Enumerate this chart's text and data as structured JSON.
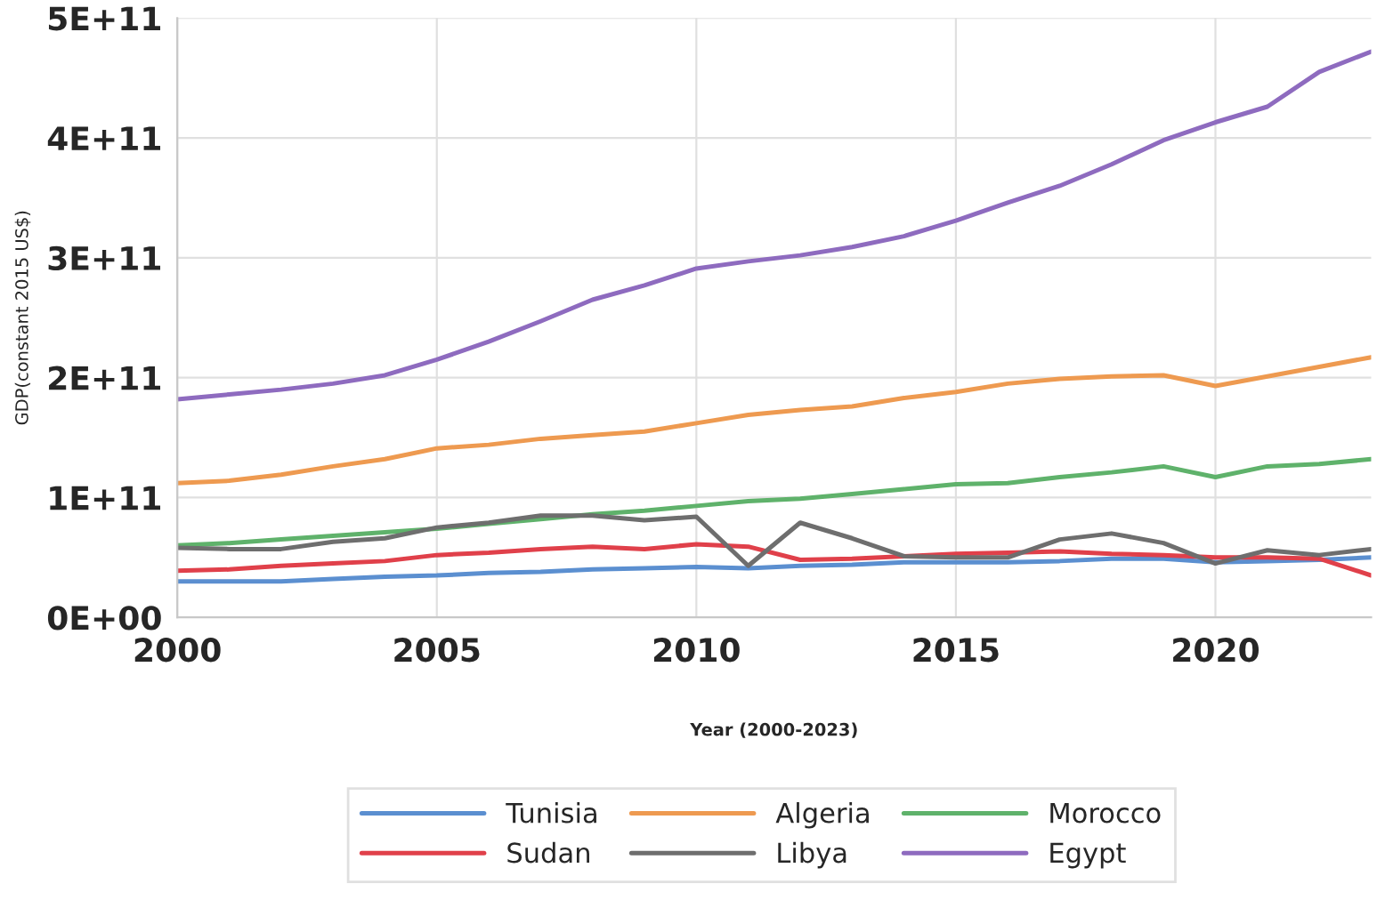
{
  "chart_data": {
    "type": "line",
    "xlabel": "Year (2000-2023)",
    "ylabel": "GDP(constant 2015 US$)",
    "x": [
      2000,
      2001,
      2002,
      2003,
      2004,
      2005,
      2006,
      2007,
      2008,
      2009,
      2010,
      2011,
      2012,
      2013,
      2014,
      2015,
      2016,
      2017,
      2018,
      2019,
      2020,
      2021,
      2022,
      2023
    ],
    "series": [
      {
        "name": "Tunisia",
        "color": "#5b8fd0",
        "values": [
          30000000000.0,
          30000000000.0,
          30000000000.0,
          32000000000.0,
          34000000000.0,
          35000000000.0,
          37000000000.0,
          38000000000.0,
          40000000000.0,
          41000000000.0,
          42000000000.0,
          41000000000.0,
          43000000000.0,
          44000000000.0,
          46000000000.0,
          46000000000.0,
          46000000000.0,
          47000000000.0,
          49000000000.0,
          49000000000.0,
          46000000000.0,
          47000000000.0,
          48000000000.0,
          50000000000.0
        ]
      },
      {
        "name": "Algeria",
        "color": "#ee9a50",
        "values": [
          112000000000.0,
          114000000000.0,
          119000000000.0,
          126000000000.0,
          132000000000.0,
          141000000000.0,
          144000000000.0,
          149000000000.0,
          152000000000.0,
          155000000000.0,
          162000000000.0,
          169000000000.0,
          173000000000.0,
          176000000000.0,
          183000000000.0,
          188000000000.0,
          195000000000.0,
          199000000000.0,
          201000000000.0,
          202000000000.0,
          193000000000.0,
          201000000000.0,
          209000000000.0,
          217000000000.0
        ]
      },
      {
        "name": "Morocco",
        "color": "#5fb26b",
        "values": [
          60000000000.0,
          62000000000.0,
          65000000000.0,
          68000000000.0,
          71000000000.0,
          74000000000.0,
          78000000000.0,
          82000000000.0,
          86000000000.0,
          89000000000.0,
          93000000000.0,
          97000000000.0,
          99000000000.0,
          103000000000.0,
          107000000000.0,
          111000000000.0,
          112000000000.0,
          117000000000.0,
          121000000000.0,
          126000000000.0,
          117000000000.0,
          126000000000.0,
          128000000000.0,
          132000000000.0
        ]
      },
      {
        "name": "Sudan",
        "color": "#e0404a",
        "values": [
          39000000000.0,
          40000000000.0,
          43000000000.0,
          45000000000.0,
          47000000000.0,
          52000000000.0,
          54000000000.0,
          57000000000.0,
          59000000000.0,
          57000000000.0,
          61000000000.0,
          59000000000.0,
          48000000000.0,
          49000000000.0,
          51000000000.0,
          53000000000.0,
          54000000000.0,
          55000000000.0,
          53000000000.0,
          52000000000.0,
          50000000000.0,
          50000000000.0,
          49000000000.0,
          35000000000.0
        ]
      },
      {
        "name": "Libya",
        "color": "#6e6e6e",
        "values": [
          58000000000.0,
          57000000000.0,
          57000000000.0,
          63000000000.0,
          66000000000.0,
          75000000000.0,
          79000000000.0,
          85000000000.0,
          85000000000.0,
          81000000000.0,
          84000000000.0,
          43000000000.0,
          79000000000.0,
          66000000000.0,
          51000000000.0,
          50000000000.0,
          50000000000.0,
          65000000000.0,
          70000000000.0,
          62000000000.0,
          45000000000.0,
          56000000000.0,
          52000000000.0,
          57000000000.0
        ]
      },
      {
        "name": "Egypt",
        "color": "#8e6bbf",
        "values": [
          182000000000.0,
          186000000000.0,
          190000000000.0,
          195000000000.0,
          202000000000.0,
          215000000000.0,
          230000000000.0,
          247000000000.0,
          265000000000.0,
          277000000000.0,
          291000000000.0,
          297000000000.0,
          302000000000.0,
          309000000000.0,
          318000000000.0,
          331000000000.0,
          346000000000.0,
          360000000000.0,
          378000000000.0,
          398000000000.0,
          413000000000.0,
          426000000000.0,
          455000000000.0,
          472000000000.0
        ]
      }
    ],
    "xlim": [
      2000,
      2023
    ],
    "xticks": [
      2000,
      2005,
      2010,
      2015,
      2020
    ],
    "ylim": [
      0,
      500000000000.0
    ],
    "yticks": [
      {
        "value": 0,
        "label": "0E+00"
      },
      {
        "value": 100000000000.0,
        "label": "1E+11"
      },
      {
        "value": 200000000000.0,
        "label": "2E+11"
      },
      {
        "value": 300000000000.0,
        "label": "3E+11"
      },
      {
        "value": 400000000000.0,
        "label": "4E+11"
      },
      {
        "value": 500000000000.0,
        "label": "5E+11"
      }
    ],
    "grid": true,
    "legend": "bottom",
    "marker": "none",
    "line_style": "solid"
  }
}
